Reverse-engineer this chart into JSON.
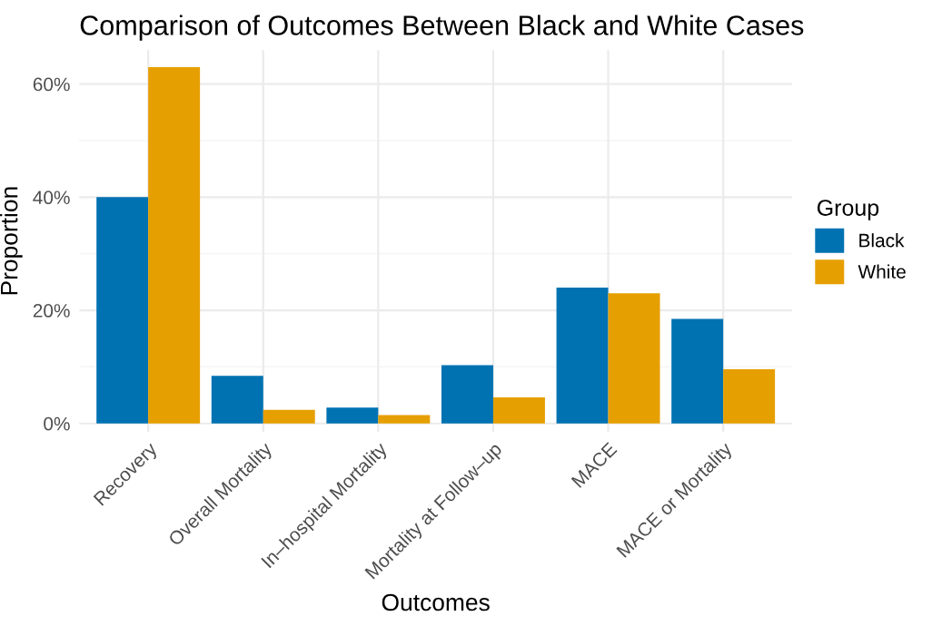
{
  "chart_data": {
    "type": "bar",
    "title": "Comparison of Outcomes Between Black and White Cases",
    "xlabel": "Outcomes",
    "ylabel": "Proportion",
    "legend_title": "Group",
    "categories": [
      "Recovery",
      "Overall Mortality",
      "In–hospital Mortality",
      "Mortality at Follow–up",
      "MACE",
      "MACE or Mortality"
    ],
    "series": [
      {
        "name": "Black",
        "color": "#0072b2",
        "values": [
          40.0,
          8.4,
          2.8,
          10.3,
          24.0,
          18.5
        ]
      },
      {
        "name": "White",
        "color": "#e69f00",
        "values": [
          63.0,
          2.4,
          1.5,
          4.6,
          23.0,
          9.6
        ]
      }
    ],
    "ylim": [
      -1.5,
      66
    ],
    "yticks": [
      {
        "value": 0,
        "label": "0%"
      },
      {
        "value": 20,
        "label": "20%"
      },
      {
        "value": 40,
        "label": "40%"
      },
      {
        "value": 60,
        "label": "60%"
      }
    ],
    "grid": true,
    "legend": "right"
  }
}
